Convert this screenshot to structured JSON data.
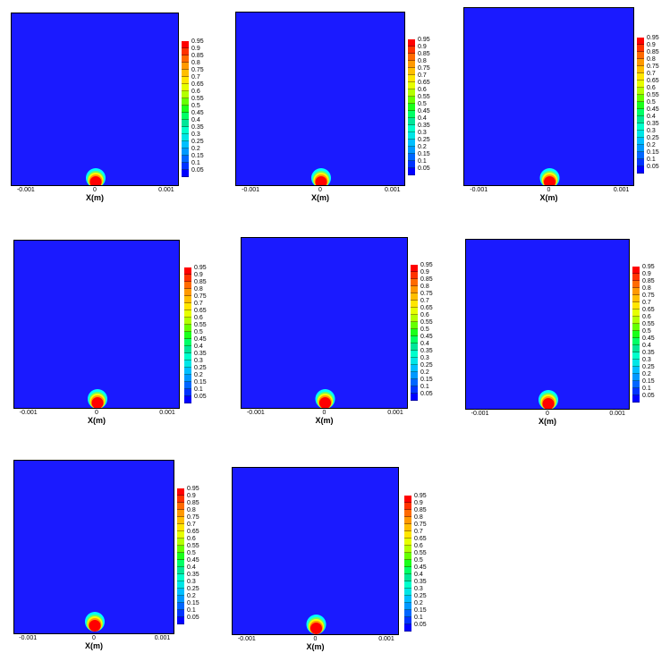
{
  "chart_data": [
    {
      "type": "heatmap",
      "xlabel": "X(m)",
      "xticks": [
        "-0.001",
        "0",
        "0.001"
      ],
      "colorbar": [
        "0.95",
        "0.9",
        "0.85",
        "0.8",
        "0.75",
        "0.7",
        "0.65",
        "0.6",
        "0.55",
        "0.5",
        "0.45",
        "0.4",
        "0.35",
        "0.3",
        "0.25",
        "0.2",
        "0.15",
        "0.1",
        "0.05"
      ]
    },
    {
      "type": "heatmap",
      "xlabel": "X(m)",
      "xticks": [
        "-0.001",
        "0",
        "0.001"
      ],
      "colorbar": [
        "0.95",
        "0.9",
        "0.85",
        "0.8",
        "0.75",
        "0.7",
        "0.65",
        "0.6",
        "0.55",
        "0.5",
        "0.45",
        "0.4",
        "0.35",
        "0.3",
        "0.25",
        "0.2",
        "0.15",
        "0.1",
        "0.05"
      ]
    },
    {
      "type": "heatmap",
      "xlabel": "X(m)",
      "xticks": [
        "-0.001",
        "0",
        "0.001"
      ],
      "colorbar": [
        "0.95",
        "0.9",
        "0.85",
        "0.8",
        "0.75",
        "0.7",
        "0.65",
        "0.6",
        "0.55",
        "0.5",
        "0.45",
        "0.4",
        "0.35",
        "0.3",
        "0.25",
        "0.2",
        "0.15",
        "0.1",
        "0.05"
      ]
    },
    {
      "type": "heatmap",
      "xlabel": "X(m)",
      "xticks": [
        "-0.001",
        "0",
        "0.001"
      ],
      "colorbar": [
        "0.95",
        "0.9",
        "0.85",
        "0.8",
        "0.75",
        "0.7",
        "0.65",
        "0.6",
        "0.55",
        "0.5",
        "0.45",
        "0.4",
        "0.35",
        "0.3",
        "0.25",
        "0.2",
        "0.15",
        "0.1",
        "0.05"
      ]
    },
    {
      "type": "heatmap",
      "xlabel": "X(m)",
      "xticks": [
        "-0.001",
        "0",
        "0.001"
      ],
      "colorbar": [
        "0.95",
        "0.9",
        "0.85",
        "0.8",
        "0.75",
        "0.7",
        "0.65",
        "0.6",
        "0.55",
        "0.5",
        "0.45",
        "0.4",
        "0.35",
        "0.3",
        "0.25",
        "0.2",
        "0.15",
        "0.1",
        "0.05"
      ]
    },
    {
      "type": "heatmap",
      "xlabel": "X(m)",
      "xticks": [
        "-0.001",
        "0",
        "0.001"
      ],
      "colorbar": [
        "0.95",
        "0.9",
        "0.85",
        "0.8",
        "0.75",
        "0.7",
        "0.65",
        "0.6",
        "0.55",
        "0.5",
        "0.45",
        "0.4",
        "0.35",
        "0.3",
        "0.25",
        "0.2",
        "0.15",
        "0.1",
        "0.05"
      ]
    },
    {
      "type": "heatmap",
      "xlabel": "X(m)",
      "xticks": [
        "-0.001",
        "0",
        "0.001"
      ],
      "colorbar": [
        "0.95",
        "0.9",
        "0.85",
        "0.8",
        "0.75",
        "0.7",
        "0.65",
        "0.6",
        "0.55",
        "0.5",
        "0.45",
        "0.4",
        "0.35",
        "0.3",
        "0.25",
        "0.2",
        "0.15",
        "0.1",
        "0.05"
      ]
    },
    {
      "type": "heatmap",
      "xlabel": "X(m)",
      "xticks": [
        "-0.001",
        "0",
        "0.001"
      ],
      "colorbar": [
        "0.95",
        "0.9",
        "0.85",
        "0.8",
        "0.75",
        "0.7",
        "0.65",
        "0.6",
        "0.55",
        "0.5",
        "0.45",
        "0.4",
        "0.35",
        "0.3",
        "0.25",
        "0.2",
        "0.15",
        "0.1",
        "0.05"
      ]
    }
  ],
  "colors": {
    "background_blue": "#1a1aff",
    "colorbar": [
      "#ff0000",
      "#ff3300",
      "#ff6a00",
      "#ff9900",
      "#ffbf00",
      "#ffe600",
      "#e6ff00",
      "#b3ff00",
      "#66ff00",
      "#1aff1a",
      "#00ff66",
      "#00e699",
      "#00ffcc",
      "#00e6e6",
      "#00bfff",
      "#0099ff",
      "#0066ff",
      "#0033ff",
      "#0000ff"
    ],
    "drop_core": "#ff0000",
    "drop_ring": "#ffff00",
    "drop_edge": "#00ffff"
  }
}
